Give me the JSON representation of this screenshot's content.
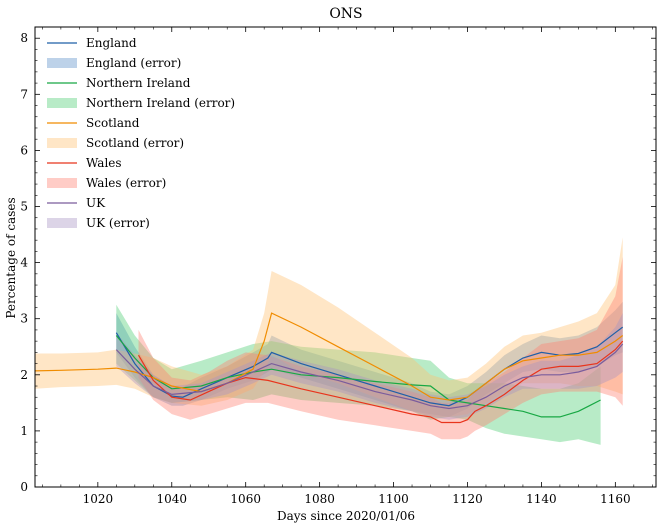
{
  "chart_data": {
    "type": "line",
    "title": "ONS",
    "xlabel": "Days since 2020/01/06",
    "ylabel": "Percentage of cases",
    "xlim": [
      1003,
      1171
    ],
    "ylim": [
      0,
      8.2
    ],
    "xticks": [
      1020,
      1040,
      1060,
      1080,
      1100,
      1120,
      1140,
      1160
    ],
    "yticks": [
      0,
      1,
      2,
      3,
      4,
      5,
      6,
      7,
      8
    ],
    "legend_position": "top-left",
    "grid": false,
    "series": [
      {
        "name": "England",
        "error_name": "England (error)",
        "color": "#1f5fa8",
        "fill": "#5b8fc8",
        "x": [
          1025,
          1030,
          1035,
          1040,
          1043,
          1048,
          1055,
          1062,
          1066,
          1067,
          1075,
          1085,
          1095,
          1105,
          1110,
          1115,
          1120,
          1125,
          1130,
          1135,
          1140,
          1145,
          1150,
          1155,
          1160,
          1162
        ],
        "y": [
          2.75,
          2.2,
          1.8,
          1.62,
          1.6,
          1.75,
          1.95,
          2.15,
          2.3,
          2.4,
          2.2,
          2.0,
          1.8,
          1.6,
          1.5,
          1.45,
          1.6,
          1.85,
          2.1,
          2.3,
          2.4,
          2.35,
          2.38,
          2.5,
          2.75,
          2.85
        ],
        "lower": [
          2.4,
          1.95,
          1.6,
          1.45,
          1.45,
          1.55,
          1.75,
          1.9,
          2.05,
          2.1,
          1.95,
          1.75,
          1.55,
          1.35,
          1.3,
          1.25,
          1.4,
          1.65,
          1.85,
          2.05,
          2.1,
          2.05,
          2.05,
          2.15,
          2.35,
          2.4
        ],
        "upper": [
          3.1,
          2.5,
          2.0,
          1.8,
          1.78,
          1.95,
          2.15,
          2.4,
          2.55,
          2.7,
          2.45,
          2.25,
          2.05,
          1.85,
          1.7,
          1.65,
          1.8,
          2.05,
          2.35,
          2.55,
          2.7,
          2.65,
          2.7,
          2.85,
          3.15,
          3.3
        ]
      },
      {
        "name": "Northern Ireland",
        "error_name": "Northern Ireland (error)",
        "color": "#18a844",
        "fill": "#4dcc74",
        "x": [
          1025,
          1030,
          1035,
          1040,
          1048,
          1055,
          1062,
          1067,
          1075,
          1085,
          1095,
          1105,
          1110,
          1115,
          1120,
          1125,
          1130,
          1135,
          1140,
          1145,
          1150,
          1153,
          1156
        ],
        "y": [
          2.7,
          2.3,
          1.95,
          1.75,
          1.8,
          1.95,
          2.05,
          2.1,
          2.0,
          1.95,
          1.88,
          1.82,
          1.8,
          1.55,
          1.5,
          1.45,
          1.4,
          1.35,
          1.25,
          1.25,
          1.35,
          1.45,
          1.55
        ],
        "lower": [
          2.2,
          1.9,
          1.6,
          1.5,
          1.55,
          1.6,
          1.55,
          1.65,
          1.55,
          1.5,
          1.45,
          1.35,
          1.2,
          1.25,
          1.2,
          1.05,
          0.95,
          0.9,
          0.85,
          0.8,
          0.85,
          0.8,
          0.75
        ],
        "upper": [
          3.25,
          2.7,
          2.3,
          2.1,
          2.25,
          2.4,
          2.55,
          2.6,
          2.5,
          2.45,
          2.4,
          2.3,
          2.25,
          1.95,
          1.85,
          1.85,
          1.85,
          1.8,
          1.75,
          1.75,
          1.85,
          2.0,
          2.15
        ]
      },
      {
        "name": "Scotland",
        "error_name": "Scotland (error)",
        "color": "#f08c00",
        "fill": "#ffc070",
        "x": [
          1003,
          1010,
          1020,
          1025,
          1030,
          1035,
          1040,
          1048,
          1055,
          1062,
          1065,
          1067,
          1075,
          1085,
          1095,
          1105,
          1110,
          1115,
          1120,
          1125,
          1130,
          1135,
          1140,
          1145,
          1150,
          1155,
          1160,
          1162
        ],
        "y": [
          2.07,
          2.08,
          2.1,
          2.12,
          2.05,
          1.95,
          1.8,
          1.7,
          1.85,
          2.1,
          2.6,
          3.1,
          2.85,
          2.5,
          2.15,
          1.8,
          1.6,
          1.55,
          1.6,
          1.85,
          2.1,
          2.25,
          2.3,
          2.35,
          2.35,
          2.4,
          2.6,
          2.7
        ],
        "lower": [
          1.75,
          1.78,
          1.8,
          1.82,
          1.75,
          1.6,
          1.5,
          1.45,
          1.55,
          1.75,
          2.05,
          2.35,
          2.05,
          1.85,
          1.6,
          1.35,
          1.25,
          1.25,
          1.3,
          1.5,
          1.7,
          1.85,
          1.85,
          1.85,
          1.8,
          1.8,
          1.7,
          1.65
        ],
        "upper": [
          2.38,
          2.38,
          2.4,
          2.45,
          2.38,
          2.3,
          2.15,
          2.0,
          2.15,
          2.45,
          3.1,
          3.85,
          3.6,
          3.2,
          2.75,
          2.3,
          2.0,
          1.9,
          1.95,
          2.2,
          2.5,
          2.7,
          2.75,
          2.85,
          2.95,
          3.1,
          3.6,
          4.45
        ]
      },
      {
        "name": "Wales",
        "error_name": "Wales (error)",
        "color": "#e8341c",
        "fill": "#ff8070",
        "x": [
          1031,
          1035,
          1040,
          1045,
          1050,
          1055,
          1060,
          1066,
          1075,
          1085,
          1095,
          1105,
          1110,
          1113,
          1118,
          1120,
          1122,
          1125,
          1130,
          1135,
          1140,
          1145,
          1150,
          1155,
          1160,
          1162
        ],
        "y": [
          2.35,
          1.9,
          1.6,
          1.55,
          1.7,
          1.85,
          1.95,
          1.9,
          1.75,
          1.6,
          1.45,
          1.3,
          1.25,
          1.15,
          1.15,
          1.2,
          1.35,
          1.45,
          1.65,
          1.9,
          2.1,
          2.15,
          2.15,
          2.2,
          2.45,
          2.6
        ],
        "lower": [
          1.95,
          1.55,
          1.3,
          1.2,
          1.3,
          1.4,
          1.5,
          1.5,
          1.35,
          1.2,
          1.1,
          1.0,
          0.95,
          0.85,
          0.85,
          0.9,
          1.0,
          1.1,
          1.3,
          1.5,
          1.65,
          1.7,
          1.7,
          1.7,
          1.6,
          1.45
        ],
        "upper": [
          2.8,
          2.3,
          1.95,
          1.9,
          2.05,
          2.25,
          2.4,
          2.35,
          2.15,
          2.0,
          1.85,
          1.7,
          1.6,
          1.5,
          1.5,
          1.55,
          1.7,
          1.85,
          2.05,
          2.3,
          2.55,
          2.6,
          2.65,
          2.8,
          3.4,
          4.1
        ]
      },
      {
        "name": "UK",
        "error_name": "UK (error)",
        "color": "#7a5c9c",
        "fill": "#a894c4",
        "x": [
          1025,
          1030,
          1035,
          1040,
          1048,
          1055,
          1062,
          1067,
          1075,
          1085,
          1095,
          1105,
          1110,
          1115,
          1120,
          1125,
          1130,
          1135,
          1140,
          1145,
          1150,
          1155,
          1160,
          1162
        ],
        "y": [
          2.45,
          2.1,
          1.8,
          1.65,
          1.7,
          1.85,
          2.05,
          2.2,
          2.05,
          1.9,
          1.7,
          1.55,
          1.45,
          1.4,
          1.45,
          1.6,
          1.8,
          1.95,
          2.0,
          2.0,
          2.05,
          2.15,
          2.4,
          2.55
        ],
        "lower": [
          2.15,
          1.85,
          1.6,
          1.5,
          1.55,
          1.65,
          1.85,
          2.0,
          1.85,
          1.7,
          1.5,
          1.35,
          1.25,
          1.2,
          1.25,
          1.4,
          1.6,
          1.75,
          1.75,
          1.75,
          1.75,
          1.8,
          1.95,
          2.05
        ],
        "upper": [
          2.75,
          2.35,
          2.0,
          1.8,
          1.85,
          2.05,
          2.25,
          2.4,
          2.25,
          2.1,
          1.9,
          1.75,
          1.65,
          1.6,
          1.65,
          1.8,
          2.0,
          2.15,
          2.25,
          2.25,
          2.35,
          2.5,
          2.85,
          3.1
        ]
      }
    ]
  }
}
